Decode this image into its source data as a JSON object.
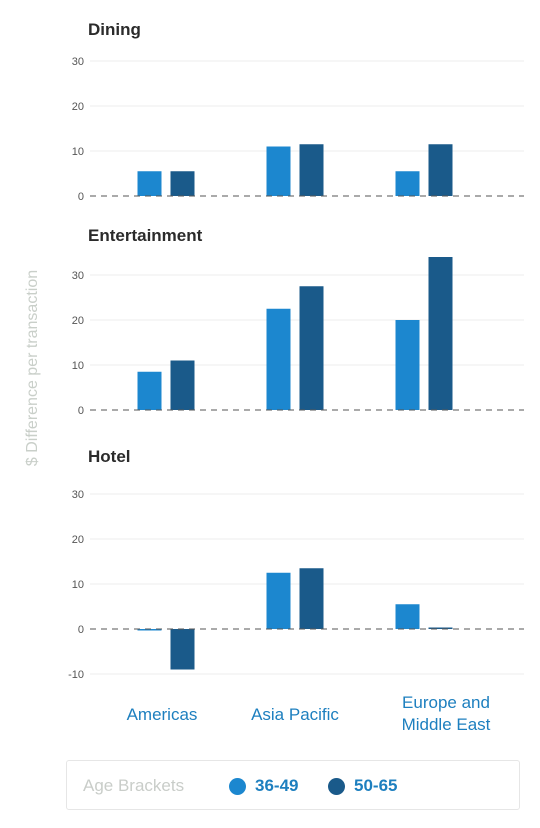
{
  "chart_data": {
    "type": "bar",
    "ylabel": "$ Difference per transaction",
    "categories": [
      "Americas",
      "Asia Pacific",
      "Europe and Middle East"
    ],
    "category_lines": [
      [
        "Americas"
      ],
      [
        "Asia Pacific"
      ],
      [
        "Europe and",
        "Middle East"
      ]
    ],
    "legend": {
      "title": "Age Brackets",
      "placement": "bottom",
      "entries": [
        {
          "label": "36-49",
          "color": "#1c87cf"
        },
        {
          "label": "50-65",
          "color": "#1a5a8a"
        }
      ]
    },
    "panels": [
      {
        "title": "Dining",
        "ylim": [
          0,
          30
        ],
        "yticks": [
          0,
          10,
          20,
          30
        ],
        "series": [
          {
            "name": "36-49",
            "values": [
              5.5,
              11,
              5.5
            ]
          },
          {
            "name": "50-65",
            "values": [
              5.5,
              11.5,
              11.5
            ]
          }
        ]
      },
      {
        "title": "Entertainment",
        "ylim": [
          0,
          35
        ],
        "yticks": [
          0,
          10,
          20,
          30
        ],
        "series": [
          {
            "name": "36-49",
            "values": [
              8.5,
              22.5,
              20
            ]
          },
          {
            "name": "50-65",
            "values": [
              11,
              27.5,
              34
            ]
          }
        ]
      },
      {
        "title": "Hotel",
        "ylim": [
          -10,
          30
        ],
        "yticks": [
          -10,
          0,
          10,
          20,
          30
        ],
        "series": [
          {
            "name": "36-49",
            "values": [
              -0.3,
              12.5,
              5.5
            ]
          },
          {
            "name": "50-65",
            "values": [
              -9,
              13.5,
              0.3
            ]
          }
        ]
      }
    ]
  }
}
